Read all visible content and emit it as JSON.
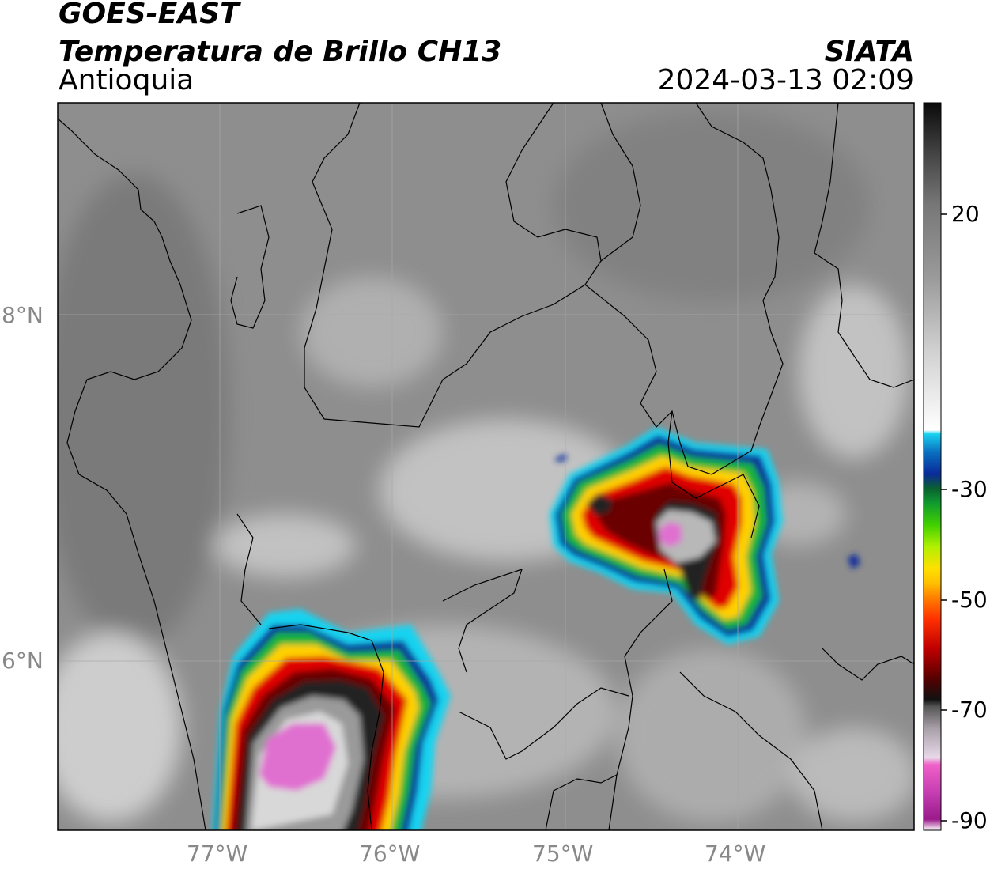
{
  "header": {
    "satellite": "GOES-EAST",
    "product": "Temperatura de Brillo CH13",
    "region": "Antioquia",
    "organization": "SIATA",
    "datetime": "2024-03-13 02:09"
  },
  "axes": {
    "lon_ticks": [
      "77°W",
      "76°W",
      "75°W",
      "74°W"
    ],
    "lat_ticks": [
      "8°N",
      "6°N"
    ]
  },
  "colorbar": {
    "tick_labels": [
      "20",
      "-30",
      "-50",
      "-70",
      "-90"
    ],
    "colors": {
      "black": "#111111",
      "gray_dark": "#555555",
      "gray_light": "#d8d8d8",
      "white": "#ffffff",
      "cyan": "#19d3f0",
      "blue": "#0b2a9a",
      "green": "#19b33a",
      "lime": "#70e000",
      "yellow": "#ffd000",
      "orange": "#ff7a00",
      "red": "#e00000",
      "dark_red": "#6a0000",
      "pink": "#f060c8",
      "magenta": "#a0228c"
    }
  }
}
